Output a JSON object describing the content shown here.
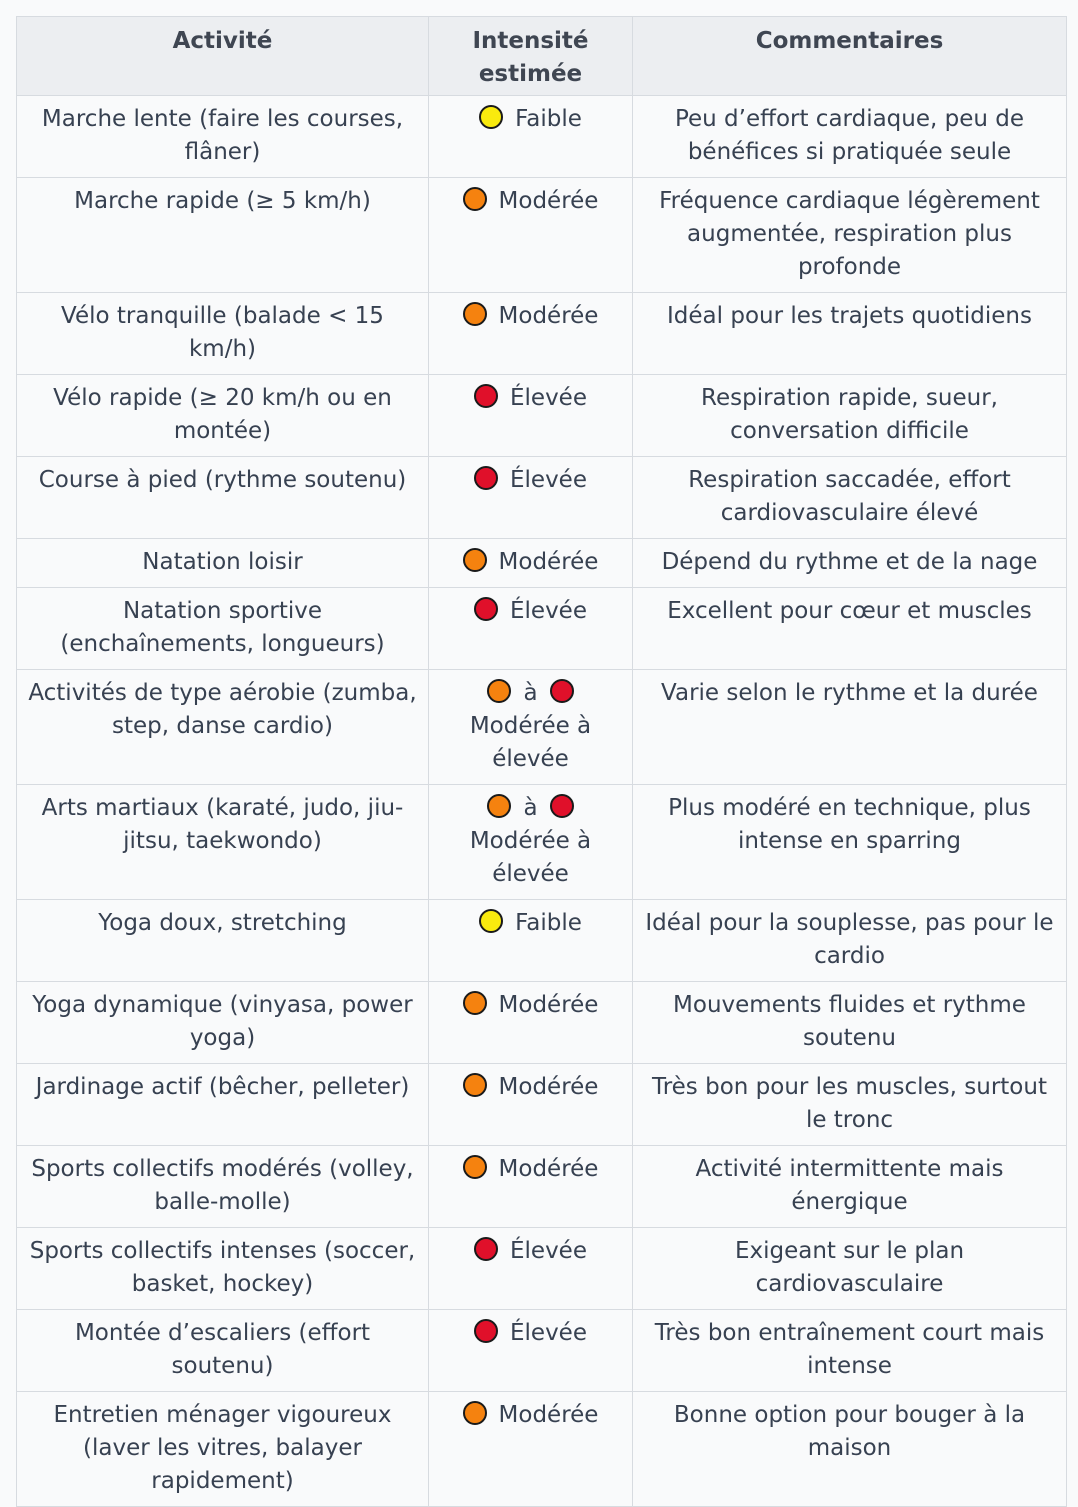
{
  "headers": {
    "activity": "Activité",
    "intensity": "Intensité estimée",
    "comments": "Commentaires"
  },
  "level_colors": {
    "faible": "#f9ea0e",
    "moderee": "#f5820f",
    "elevee": "#e0102a"
  },
  "rows": [
    {
      "activity": "Marche lente (faire les courses, flâner)",
      "level": "faible",
      "intensity": "Faible",
      "comment": "Peu d’effort cardiaque, peu de bénéfices si pratiquée seule"
    },
    {
      "activity": "Marche rapide (≥ 5 km/h)",
      "level": "moderee",
      "intensity": "Modérée",
      "comment": "Fréquence cardiaque légèrement augmentée, respiration plus profonde"
    },
    {
      "activity": "Vélo tranquille (balade < 15 km/h)",
      "level": "moderee",
      "intensity": "Modérée",
      "comment": "Idéal pour les trajets quotidiens"
    },
    {
      "activity": "Vélo rapide (≥ 20 km/h ou en montée)",
      "level": "elevee",
      "intensity": "Élevée",
      "comment": "Respiration rapide, sueur, conversation difficile"
    },
    {
      "activity": "Course à pied (rythme soutenu)",
      "level": "elevee",
      "intensity": "Élevée",
      "comment": "Respiration saccadée, effort cardiovasculaire élevé"
    },
    {
      "activity": "Natation loisir",
      "level": "moderee",
      "intensity": "Modérée",
      "comment": "Dépend du rythme et de la nage"
    },
    {
      "activity": "Natation sportive (enchaînements, longueurs)",
      "level": "elevee",
      "intensity": "Élevée",
      "comment": "Excellent pour cœur et muscles"
    },
    {
      "activity": "Activités de type aérobie (zumba, step, danse cardio)",
      "level": "moderee",
      "level2": "elevee",
      "range_sep": "à",
      "intensity": "Modérée à élevée",
      "comment": "Varie selon le rythme et la durée"
    },
    {
      "activity": "Arts martiaux (karaté, judo, jiu-jitsu, taekwondo)",
      "level": "moderee",
      "level2": "elevee",
      "range_sep": "à",
      "intensity": "Modérée à élevée",
      "comment": "Plus modéré en technique, plus intense en sparring"
    },
    {
      "activity": "Yoga doux, stretching",
      "level": "faible",
      "intensity": "Faible",
      "comment": "Idéal pour la souplesse, pas pour le cardio"
    },
    {
      "activity": "Yoga dynamique (vinyasa, power yoga)",
      "level": "moderee",
      "intensity": "Modérée",
      "comment": "Mouvements fluides et rythme soutenu"
    },
    {
      "activity": "Jardinage actif (bêcher, pelleter)",
      "level": "moderee",
      "intensity": "Modérée",
      "comment": "Très bon pour les muscles, surtout le tronc"
    },
    {
      "activity": "Sports collectifs modérés (volley, balle-molle)",
      "level": "moderee",
      "intensity": "Modérée",
      "comment": "Activité intermittente mais énergique"
    },
    {
      "activity": "Sports collectifs intenses (soccer, basket, hockey)",
      "level": "elevee",
      "intensity": "Élevée",
      "comment": "Exigeant sur le plan cardiovasculaire"
    },
    {
      "activity": "Montée d’escaliers (effort soutenu)",
      "level": "elevee",
      "intensity": "Élevée",
      "comment": "Très bon entraînement court mais intense"
    },
    {
      "activity": "Entretien ménager vigoureux (laver les vitres, balayer rapidement)",
      "level": "moderee",
      "intensity": "Modérée",
      "comment": "Bonne option pour bouger à la maison"
    }
  ]
}
